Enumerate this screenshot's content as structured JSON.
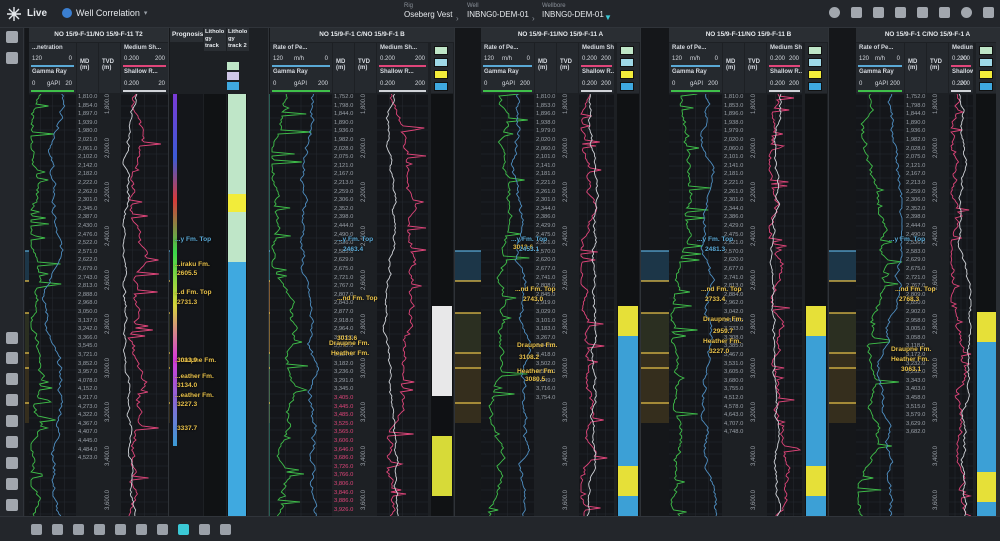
{
  "app": {
    "live_label": "Live",
    "view_label": "Well Correlation"
  },
  "crumbs": [
    {
      "key": "Rig",
      "value": "Oseberg Vest"
    },
    {
      "key": "Well",
      "value": "INBNG0-DEM-01"
    },
    {
      "key": "Wellbore",
      "value": "INBNG0-DEM-01"
    }
  ],
  "toolbar_icons": [
    "clock-icon",
    "dashboard-icon",
    "bell-icon",
    "rocket-icon",
    "chat-icon",
    "apps-grid-icon",
    "user-icon",
    "settings-icon"
  ],
  "sidebar_icons": [
    "layout-icon",
    "sliders-icon",
    "radar-icon",
    "hierarchy-icon",
    "wave-icon",
    "table-icon",
    "search-icon",
    "pin-icon",
    "document-icon",
    "focus-icon",
    "help-icon",
    "expand-icon"
  ],
  "bottom_icons": [
    "text-cursor-icon",
    "width-icon",
    "height-icon",
    "anchor-icon",
    "refresh-icon",
    "lock-icon",
    "trash-icon",
    "flag-icon",
    "home-icon",
    "ruler-icon"
  ],
  "prognosis": {
    "title": "Prognosis",
    "litho1": "Litholo gy track",
    "litho2": "Litholo gy track 2"
  },
  "wells": [
    {
      "title": "NO 15/9-F-11/NO 15/9-F-11 T2",
      "left_curve": "...netration",
      "left_min": "120",
      "left_max": "0",
      "gr_label": "Gamma Ray",
      "gr_min": "0",
      "gr_unit": "gAPI",
      "gr_max": "20",
      "md_label": "MD (m)",
      "tvd_label": "TVD (m)",
      "res_label": "Medium Sh...",
      "res_min": "0.200",
      "res_max": "200",
      "res2_label": "Shallow R...",
      "res2_min": "0.200",
      "res2_max": "20",
      "md_values": [
        "1,810.0",
        "1,854.0",
        "1,897.0",
        "1,939.0",
        "1,980.0",
        "2,021.0",
        "2,061.0",
        "2,102.0",
        "2,142.0",
        "2,182.0",
        "2,222.0",
        "2,262.0",
        "2,301.0",
        "2,345.0",
        "2,387.0",
        "2,430.0",
        "2,476.0",
        "2,522.0",
        "2,571.0",
        "2,622.0",
        "2,679.0",
        "2,743.0",
        "2,813.0",
        "2,888.0",
        "2,968.0",
        "3,050.0",
        "3,137.0",
        "3,242.0",
        "3,366.0",
        "3,545.0",
        "3,721.0",
        "3,852.0",
        "3,957.0",
        "4,078.0",
        "4,152.0",
        "4,217.0",
        "4,273.0",
        "4,322.0",
        "4,367.0",
        "4,407.0",
        "4,445.0",
        "4,484.0",
        "4,523.0"
      ],
      "tvd_values": [
        "1,800.0",
        "2,000.0",
        "2,200.0",
        "2,400.0",
        "2,600.0",
        "2,800.0",
        "3,000.0",
        "3,200.0",
        "3,400.0",
        "3,600.0"
      ]
    },
    {
      "title": "NO 15/9-F-1 C/NO 15/9-F-1 B",
      "left_curve": "Rate of Pe...",
      "left_min": "120",
      "left_unit": "m/h",
      "left_max": "0",
      "gr_label": "Gamma Ray",
      "gr_min": "0",
      "gr_unit": "gAPI",
      "gr_max": "200",
      "md_label": "MD (m)",
      "tvd_label": "TVD (m)",
      "res_label": "Medium Sh...",
      "res_min": "0.200",
      "res_max": "200",
      "res2_label": "Shallow R...",
      "res2_min": "0.200",
      "res2_max": "200",
      "md_values": [
        "1,752.0",
        "1,798.0",
        "1,844.0",
        "1,890.0",
        "1,936.0",
        "1,982.0",
        "2,028.0",
        "2,075.0",
        "2,121.0",
        "2,167.0",
        "2,213.0",
        "2,259.0",
        "2,306.0",
        "2,352.0",
        "2,398.0",
        "2,444.0",
        "2,490.0",
        "2,536.0",
        "2,583.0",
        "2,629.0",
        "2,675.0",
        "2,721.0",
        "2,767.0",
        "2,807.0",
        "2,843.0",
        "2,877.0",
        "2,918.0",
        "2,964.0",
        "3,019.0",
        "3,073.0",
        "3,127.0",
        "3,182.0",
        "3,236.0",
        "3,291.0",
        "3,345.0",
        "3,405.0",
        "3,445.0",
        "3,485.0",
        "3,525.0",
        "3,565.0",
        "3,606.0",
        "3,646.0",
        "3,686.0",
        "3,726.0",
        "3,766.0",
        "3,806.0",
        "3,846.0",
        "3,886.0",
        "3,926.0"
      ],
      "tvd_values": [
        "1,800.0",
        "2,000.0",
        "2,200.0",
        "2,400.0",
        "2,600.0",
        "2,800.0",
        "3,000.0",
        "3,200.0",
        "3,400.0",
        "3,600.0"
      ]
    },
    {
      "title": "NO 15/9-F-11/NO 15/9-F-11 A",
      "left_curve": "Rate of Pe...",
      "left_min": "120",
      "left_unit": "m/h",
      "left_max": "0",
      "gr_label": "Gamma Ray",
      "gr_min": "0",
      "gr_unit": "gAPI",
      "gr_max": "200",
      "md_label": "MD (m)",
      "tvd_label": "TVD (m)",
      "res_label": "Medium Sh...",
      "res_min": "0.200",
      "res_max": "200",
      "res2_label": "Shallow R...",
      "res2_min": "0.200",
      "res2_max": "200",
      "md_values": [
        "1,810.0",
        "1,853.0",
        "1,896.0",
        "1,938.0",
        "1,979.0",
        "2,020.0",
        "2,060.0",
        "2,101.0",
        "2,141.0",
        "2,181.0",
        "2,221.0",
        "2,261.0",
        "2,301.0",
        "2,344.0",
        "2,386.0",
        "2,429.0",
        "2,475.0",
        "2,521.0",
        "2,570.0",
        "2,620.0",
        "2,677.0",
        "2,741.0",
        "2,808.0",
        "2,845.0",
        "2,919.0",
        "3,029.0",
        "3,101.0",
        "3,183.0",
        "3,267.0",
        "3,342.0",
        "3,418.0",
        "3,502.0",
        "3,576.0",
        "3,649.0",
        "3,716.0",
        "3,754.0"
      ],
      "tvd_values": [
        "1,800.0",
        "2,000.0",
        "2,200.0",
        "2,400.0",
        "2,600.0",
        "2,800.0",
        "3,000.0",
        "3,200.0",
        "3,400.0",
        "3,600.0"
      ]
    },
    {
      "title": "NO 15/9-F-11/NO 15/9-F-11 B",
      "left_curve": "Rate of Pe...",
      "left_min": "120",
      "left_unit": "m/h",
      "left_max": "0",
      "gr_label": "Gamma Ray",
      "gr_min": "0",
      "gr_unit": "gAPI",
      "gr_max": "200",
      "md_label": "MD (m)",
      "tvd_label": "TVD (m)",
      "res_label": "Medium Sh...",
      "res_min": "0.200",
      "res_max": "200",
      "res2_label": "Shallow R...",
      "res2_min": "0.200",
      "res2_max": "200",
      "md_values": [
        "1,810.0",
        "1,853.0",
        "1,896.0",
        "1,938.0",
        "1,979.0",
        "2,020.0",
        "2,060.0",
        "2,101.0",
        "2,141.0",
        "2,181.0",
        "2,221.0",
        "2,261.0",
        "2,301.0",
        "2,344.0",
        "2,386.0",
        "2,429.0",
        "2,475.0",
        "2,521.0",
        "2,570.0",
        "2,620.0",
        "2,677.0",
        "2,741.0",
        "2,813.0",
        "2,884.0",
        "2,962.0",
        "3,042.0",
        "3,148.0",
        "3,233.0",
        "3,308.0",
        "3,385.0",
        "3,467.0",
        "3,531.0",
        "3,605.0",
        "3,680.0",
        "3,755.0",
        "4,512.0",
        "4,578.0",
        "4,643.0",
        "4,707.0",
        "4,748.0"
      ],
      "tvd_values": [
        "1,800.0",
        "2,000.0",
        "2,200.0",
        "2,400.0",
        "2,600.0",
        "2,800.0",
        "3,000.0",
        "3,200.0",
        "3,400.0",
        "3,600.0"
      ]
    },
    {
      "title": "NO 15/9-F-1 C/NO 15/9-F-1 A",
      "left_curve": "Rate of Pe...",
      "left_min": "120",
      "left_unit": "m/h",
      "left_max": "0",
      "gr_label": "Gamma Ray",
      "gr_min": "0",
      "gr_unit": "gAPI",
      "gr_max": "200",
      "md_label": "MD (m)",
      "tvd_label": "TVD (m)",
      "res_label": "Medium Sh...",
      "res_min": "0.200",
      "res_max": "200",
      "res2_label": "Shallow R...",
      "res2_min": "0.200",
      "res2_max": "200",
      "md_values": [
        "1,752.0",
        "1,798.0",
        "1,844.0",
        "1,890.0",
        "1,936.0",
        "1,982.0",
        "2,028.0",
        "2,075.0",
        "2,121.0",
        "2,167.0",
        "2,213.0",
        "2,259.0",
        "2,306.0",
        "2,352.0",
        "2,398.0",
        "2,444.0",
        "2,490.0",
        "2,536.0",
        "2,583.0",
        "2,629.0",
        "2,675.0",
        "2,721.0",
        "2,767.0",
        "2,809.0",
        "2,850.0",
        "2,902.0",
        "2,958.0",
        "3,005.0",
        "3,058.0",
        "3,118.0",
        "3,172.0",
        "3,232.0",
        "3,292.0",
        "3,343.0",
        "3,403.0",
        "3,458.0",
        "3,515.0",
        "3,579.0",
        "3,629.0",
        "3,682.0"
      ],
      "tvd_values": [
        "1,800.0",
        "2,000.0",
        "2,200.0",
        "2,400.0",
        "2,600.0",
        "2,800.0",
        "3,000.0",
        "3,200.0",
        "3,400.0",
        "3,600.0"
      ]
    }
  ],
  "markers": [
    {
      "text": "...y Fm. Top",
      "well": 0,
      "color": "#5aa9d6"
    },
    {
      "text": "...iraku Fm.",
      "well": 0,
      "color": "#e8c14a"
    },
    {
      "text": "2605.5",
      "well": 0,
      "color": "#e8c14a"
    },
    {
      "text": "...d Fm. Top",
      "well": 0,
      "color": "#e8c14a"
    },
    {
      "text": "2731.3",
      "well": 0,
      "color": "#e8c14a"
    },
    {
      "text": "...raupne Fm.",
      "well": 0,
      "color": "#e8c14a"
    },
    {
      "text": "3013.9",
      "well": 0,
      "color": "#e8c14a"
    },
    {
      "text": "...eather Fm.",
      "well": 0,
      "color": "#e8c14a"
    },
    {
      "text": "3134.0",
      "well": 0,
      "color": "#e8c14a"
    },
    {
      "text": "...eather Fm.",
      "well": 0,
      "color": "#e8c14a"
    },
    {
      "text": "3227.3",
      "well": 0,
      "color": "#e8c14a"
    },
    {
      "text": "3337.7",
      "well": 0,
      "color": "#e8c14a"
    },
    {
      "text": "...y Fm. Top",
      "well": 1,
      "color": "#5aa9d6"
    },
    {
      "text": "2463.4",
      "well": 1,
      "color": "#5aa9d6"
    },
    {
      "text": "...nd Fm. Top",
      "well": 1,
      "color": "#e8c14a"
    },
    {
      "text": "3013.6",
      "well": 1,
      "color": "#e8c14a"
    },
    {
      "text": "Draupne Fm.",
      "well": 1,
      "color": "#e8c14a"
    },
    {
      "text": "Heather Fm.",
      "well": 1,
      "color": "#e8c14a"
    },
    {
      "text": "3013.6",
      "well": 2,
      "color": "#e8c14a"
    },
    {
      "text": "...y Fm. Top",
      "well": 2,
      "color": "#5aa9d6"
    },
    {
      "text": "2453.1",
      "well": 2,
      "color": "#5aa9d6"
    },
    {
      "text": "...nd Fm. Top",
      "well": 2,
      "color": "#e8c14a"
    },
    {
      "text": "2743.0",
      "well": 2,
      "color": "#e8c14a"
    },
    {
      "text": "Draupne Fm.",
      "well": 2,
      "color": "#e8c14a"
    },
    {
      "text": "3108.2",
      "well": 2,
      "color": "#e8c14a"
    },
    {
      "text": "Heather Fm.",
      "well": 2,
      "color": "#e8c14a"
    },
    {
      "text": "3080.5",
      "well": 2,
      "color": "#e8c14a"
    },
    {
      "text": "...y Fm. Top",
      "well": 3,
      "color": "#5aa9d6"
    },
    {
      "text": "2481.3",
      "well": 3,
      "color": "#5aa9d6"
    },
    {
      "text": "...nd Fm. Top",
      "well": 3,
      "color": "#e8c14a"
    },
    {
      "text": "2733.4",
      "well": 3,
      "color": "#e8c14a"
    },
    {
      "text": "Draupne Fm.",
      "well": 3,
      "color": "#e8c14a"
    },
    {
      "text": "2959.7",
      "well": 3,
      "color": "#e8c14a"
    },
    {
      "text": "Heather Fm.",
      "well": 3,
      "color": "#e8c14a"
    },
    {
      "text": "3227.0",
      "well": 3,
      "color": "#e8c14a"
    },
    {
      "text": "...y Fm. Top",
      "well": 4,
      "color": "#5aa9d6"
    },
    {
      "text": "...nd Fm. Top",
      "well": 4,
      "color": "#e8c14a"
    },
    {
      "text": "2768.3",
      "well": 4,
      "color": "#e8c14a"
    },
    {
      "text": "Draupne Fm.",
      "well": 4,
      "color": "#e8c14a"
    },
    {
      "text": "Heather Fm.",
      "well": 4,
      "color": "#e8c14a"
    },
    {
      "text": "3063.1",
      "well": 4,
      "color": "#e8c14a"
    }
  ],
  "colors": {
    "accent": "#3bc9d6",
    "gr_curve": "#3fbf4a",
    "res_curve": "#e0457a",
    "marker_blue": "#5aa9d6",
    "marker_gold": "#e8c14a",
    "fill_teal": "#2c6b5e",
    "fill_blue": "#2c6fa0"
  }
}
